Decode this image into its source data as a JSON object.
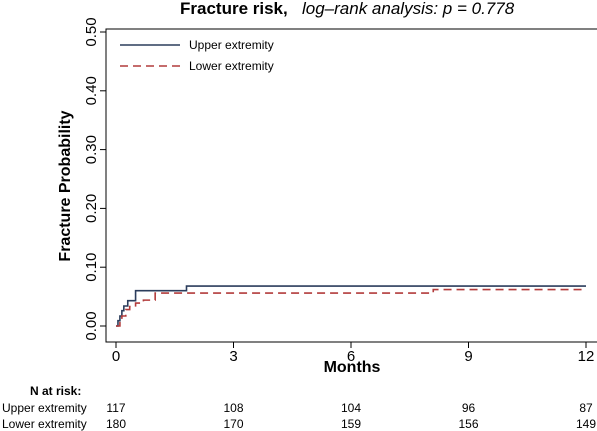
{
  "chart_data": {
    "type": "line",
    "step": true,
    "title": "Fracture risk,",
    "subtitle": "log–rank analysis: p = 0.778",
    "xlabel": "Months",
    "ylabel": "Fracture Probability",
    "xlim": [
      0,
      12
    ],
    "ylim": [
      0,
      0.5
    ],
    "xticks": [
      0,
      3,
      6,
      9,
      12
    ],
    "yticks": [
      "0.00",
      "0.10",
      "0.20",
      "0.30",
      "0.40",
      "0.50"
    ],
    "yticks_values": [
      0,
      0.1,
      0.2,
      0.3,
      0.4,
      0.5
    ],
    "grid": false,
    "legend_position": "top-left",
    "series": [
      {
        "name": "Upper extremity",
        "color": "#2b3d5c",
        "dash": "solid",
        "x": [
          0,
          0.05,
          0.1,
          0.15,
          0.2,
          0.3,
          0.5,
          1.8,
          12
        ],
        "y": [
          0,
          0.009,
          0.017,
          0.026,
          0.034,
          0.043,
          0.06,
          0.068,
          0.068
        ]
      },
      {
        "name": "Lower extremity",
        "color": "#b23b3b",
        "dash": "dashed",
        "x": [
          0,
          0.1,
          0.15,
          0.25,
          0.35,
          0.5,
          0.7,
          1.0,
          8.1,
          12
        ],
        "y": [
          0,
          0.011,
          0.017,
          0.028,
          0.033,
          0.039,
          0.044,
          0.056,
          0.062,
          0.062
        ]
      }
    ],
    "risk_table": {
      "header": "N at risk:",
      "times": [
        0,
        3,
        6,
        9,
        12
      ],
      "rows": [
        {
          "label": "Upper extremity",
          "values": [
            "117",
            "108",
            "104",
            "96",
            "87"
          ]
        },
        {
          "label": "Lower extremity",
          "values": [
            "180",
            "170",
            "159",
            "156",
            "149"
          ]
        }
      ]
    }
  }
}
